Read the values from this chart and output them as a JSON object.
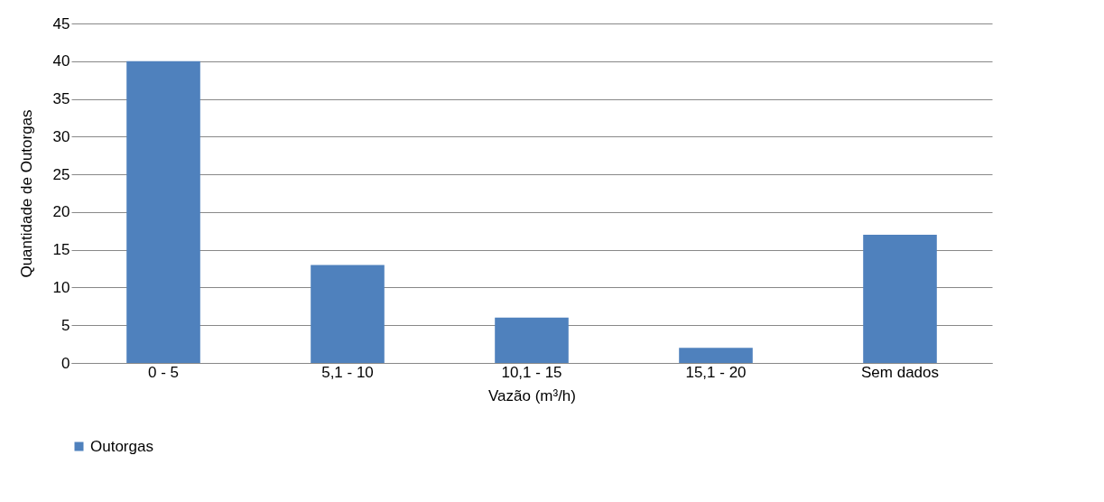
{
  "chart_data": {
    "type": "bar",
    "xlabel": "Vazão  (m³/h)",
    "ylabel": "Quantidade de Outorgas",
    "categories": [
      "0 - 5",
      "5,1 - 10",
      "10,1 - 15",
      "15,1 - 20",
      "Sem dados"
    ],
    "series": [
      {
        "name": "Outorgas",
        "color": "#4f81bd",
        "values": [
          40,
          13,
          6,
          2,
          17
        ]
      }
    ],
    "ylim": [
      0,
      45
    ],
    "yticks": [
      0,
      5,
      10,
      15,
      20,
      25,
      30,
      35,
      40,
      45
    ],
    "grid": "y",
    "legend": "bottom"
  }
}
